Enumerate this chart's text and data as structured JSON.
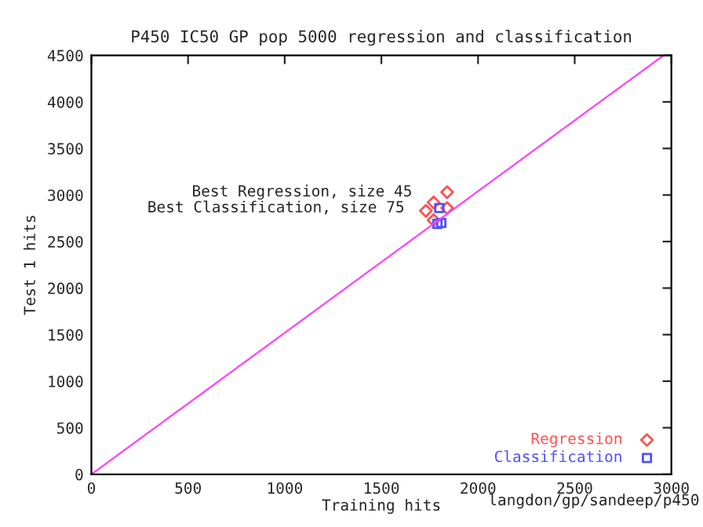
{
  "chart_data": {
    "type": "scatter",
    "title": "P450 IC50 GP pop 5000 regression and classification",
    "xlabel": "Training hits",
    "ylabel": "Test 1 hits",
    "xlim": [
      0,
      3000
    ],
    "ylim": [
      0,
      4500
    ],
    "xticks": [
      0,
      500,
      1000,
      1500,
      2000,
      2500,
      3000
    ],
    "yticks": [
      0,
      500,
      1000,
      1500,
      2000,
      2500,
      3000,
      3500,
      4000,
      4500
    ],
    "grid": false,
    "legend": "bottom right",
    "series": [
      {
        "type": "line",
        "color": "#ff40ff",
        "x": [
          0,
          2960
        ],
        "values": [
          0,
          4500
        ],
        "marker": "none"
      },
      {
        "name": "Regression",
        "color": "#ff5050",
        "marker": "diamond",
        "x": [
          1840,
          1770,
          1730,
          1840,
          1770
        ],
        "values": [
          3030,
          2920,
          2830,
          2860,
          2730
        ]
      },
      {
        "name": "Classification",
        "color": "#5050ff",
        "marker": "square",
        "x": [
          1800,
          1810,
          1790
        ],
        "values": [
          2860,
          2700,
          2690
        ]
      }
    ],
    "annotations": [
      {
        "text": "Best Regression, size 45",
        "x": 1840,
        "y": 3030
      },
      {
        "text": "Best Classification, size 75",
        "x": 1800,
        "y": 2860
      },
      "langdon/gp/sandeep/p450"
    ]
  }
}
